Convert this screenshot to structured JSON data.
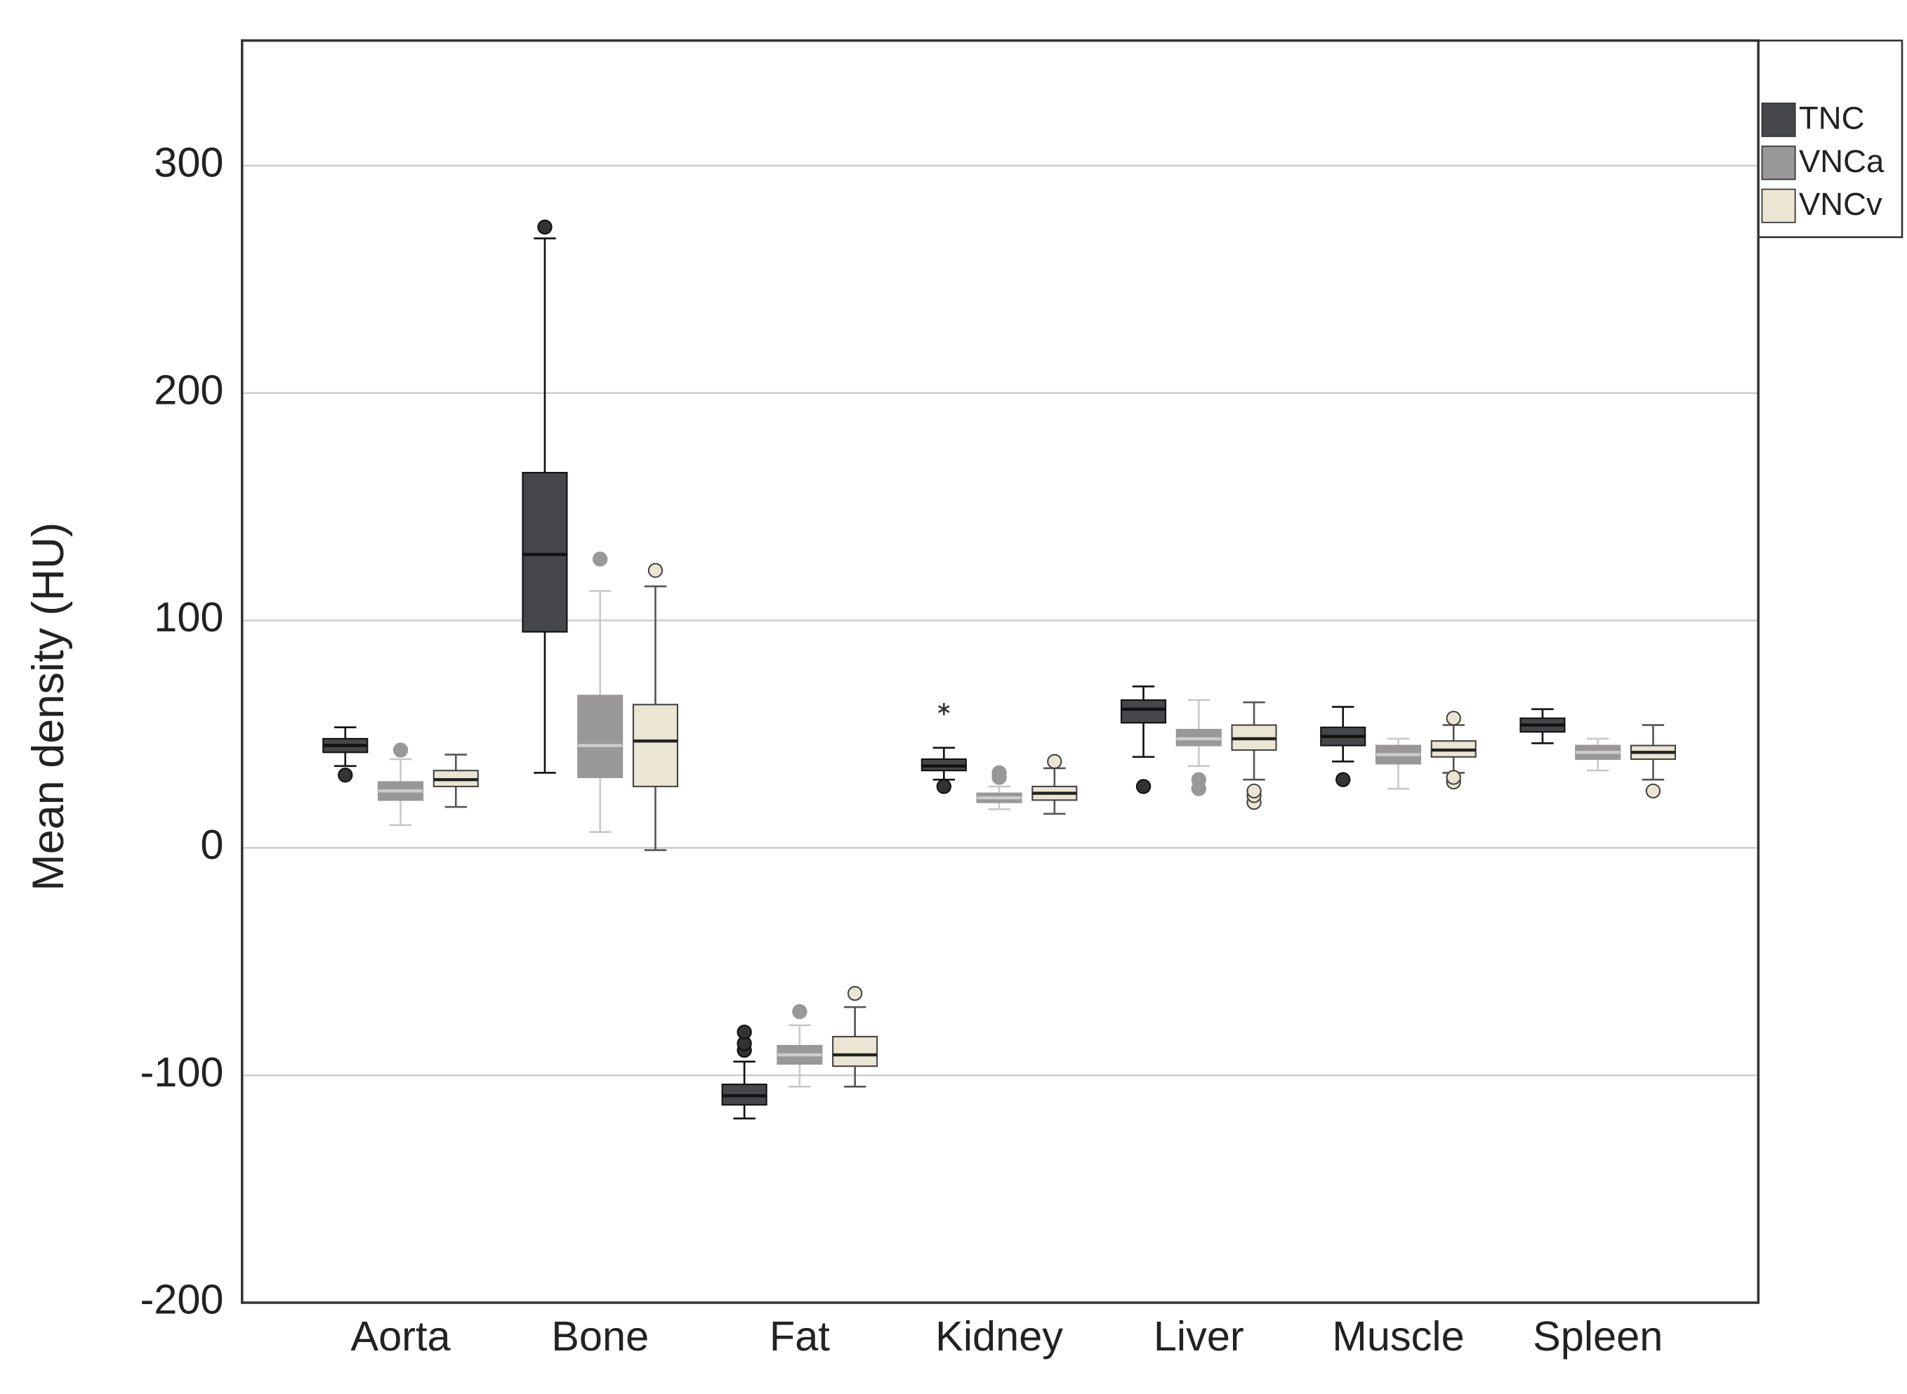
{
  "chart_data": {
    "type": "box",
    "y_label": "Mean density (HU)",
    "categories": [
      "Aorta",
      "Bone",
      "Fat",
      "Kidney",
      "Liver",
      "Muscle",
      "Spleen"
    ],
    "ylim": [
      -200,
      355
    ],
    "yticks": [
      -200,
      -100,
      0,
      100,
      200,
      300
    ],
    "grid": true,
    "legend": "right",
    "series": [
      {
        "name": "TNC",
        "color": "#45474a",
        "boxes": [
          {
            "min": 36,
            "q1": 42,
            "median": 45,
            "q3": 48,
            "max": 53,
            "outliers": [
              32
            ]
          },
          {
            "min": 33,
            "q1": 95,
            "median": 129,
            "q3": 165,
            "max": 268,
            "outliers": [
              273
            ]
          },
          {
            "min": -119,
            "q1": -113,
            "median": -109,
            "q3": -104,
            "max": -94,
            "outliers": [
              -89,
              -86,
              -81
            ]
          },
          {
            "min": 30,
            "q1": 34,
            "median": 36,
            "q3": 39,
            "max": 44,
            "outliers": [
              27
            ],
            "extremes": [
              61
            ]
          },
          {
            "min": 40,
            "q1": 55,
            "median": 61,
            "q3": 65,
            "max": 71,
            "outliers": [
              27
            ]
          },
          {
            "min": 38,
            "q1": 45,
            "median": 49,
            "q3": 53,
            "max": 62,
            "outliers": [
              30
            ]
          },
          {
            "min": 46,
            "q1": 51,
            "median": 54,
            "q3": 57,
            "max": 61,
            "outliers": []
          }
        ]
      },
      {
        "name": "VNCa",
        "color": "#9a9798",
        "boxes": [
          {
            "min": 10,
            "q1": 21,
            "median": 25,
            "q3": 29,
            "max": 39,
            "outliers": [
              43
            ]
          },
          {
            "min": 7,
            "q1": 31,
            "median": 45,
            "q3": 67,
            "max": 113,
            "outliers": [
              127
            ]
          },
          {
            "min": -105,
            "q1": -95,
            "median": -91,
            "q3": -87,
            "max": -78,
            "outliers": [
              -72
            ]
          },
          {
            "min": 17,
            "q1": 20,
            "median": 22,
            "q3": 24,
            "max": 27,
            "outliers": [
              31,
              33
            ]
          },
          {
            "min": 36,
            "q1": 45,
            "median": 48,
            "q3": 52,
            "max": 65,
            "outliers": [
              26,
              30
            ]
          },
          {
            "min": 26,
            "q1": 37,
            "median": 41,
            "q3": 45,
            "max": 48,
            "outliers": []
          },
          {
            "min": 34,
            "q1": 39,
            "median": 42,
            "q3": 45,
            "max": 48,
            "outliers": []
          }
        ]
      },
      {
        "name": "VNCv",
        "color": "#ebe5d3",
        "boxes": [
          {
            "min": 18,
            "q1": 27,
            "median": 30,
            "q3": 34,
            "max": 41,
            "outliers": []
          },
          {
            "min": -1,
            "q1": 27,
            "median": 47,
            "q3": 63,
            "max": 115,
            "outliers": [
              122
            ]
          },
          {
            "min": -105,
            "q1": -96,
            "median": -91,
            "q3": -83,
            "max": -70,
            "outliers": [
              -64
            ]
          },
          {
            "min": 15,
            "q1": 21,
            "median": 24,
            "q3": 27,
            "max": 35,
            "outliers": [
              38
            ]
          },
          {
            "min": 30,
            "q1": 43,
            "median": 48,
            "q3": 54,
            "max": 64,
            "outliers": [
              20,
              23,
              25
            ]
          },
          {
            "min": 33,
            "q1": 40,
            "median": 43,
            "q3": 47,
            "max": 54,
            "outliers": [
              29,
              31,
              57
            ]
          },
          {
            "min": 30,
            "q1": 39,
            "median": 42,
            "q3": 45,
            "max": 54,
            "outliers": [
              25
            ]
          }
        ]
      }
    ]
  }
}
